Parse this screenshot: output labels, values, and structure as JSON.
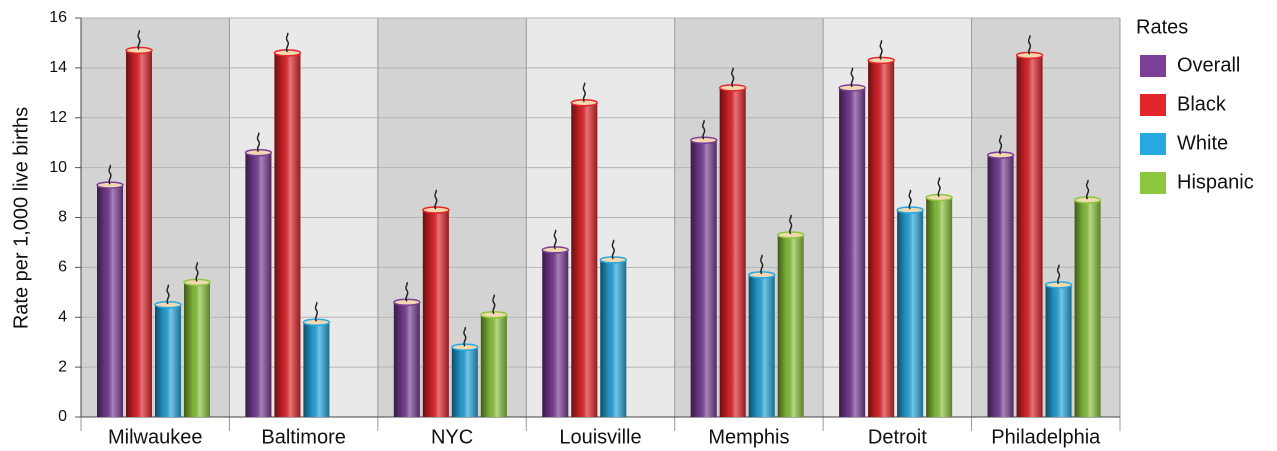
{
  "chart_data": {
    "type": "bar",
    "ylabel": "Rate per 1,000 live births",
    "legend_title": "Rates",
    "legend_position": "right",
    "categories": [
      "Milwaukee",
      "Baltimore",
      "NYC",
      "Louisville",
      "Memphis",
      "Detroit",
      "Philadelphia"
    ],
    "series": [
      {
        "name": "Overall",
        "color": "#7b3f98",
        "values": [
          9.3,
          10.6,
          4.6,
          6.7,
          11.1,
          13.2,
          10.5
        ]
      },
      {
        "name": "Black",
        "color": "#e3262c",
        "values": [
          14.7,
          14.6,
          8.3,
          12.6,
          13.2,
          14.3,
          14.5
        ]
      },
      {
        "name": "White",
        "color": "#27a8e0",
        "values": [
          4.5,
          3.8,
          2.8,
          6.3,
          5.7,
          8.3,
          5.3
        ]
      },
      {
        "name": "Hispanic",
        "color": "#8dc63f",
        "values": [
          5.4,
          null,
          4.1,
          null,
          7.3,
          8.8,
          8.7
        ]
      }
    ],
    "ylim": [
      0,
      16
    ],
    "yticks": [
      0,
      2,
      4,
      6,
      8,
      10,
      12,
      14,
      16
    ],
    "grid": true
  }
}
